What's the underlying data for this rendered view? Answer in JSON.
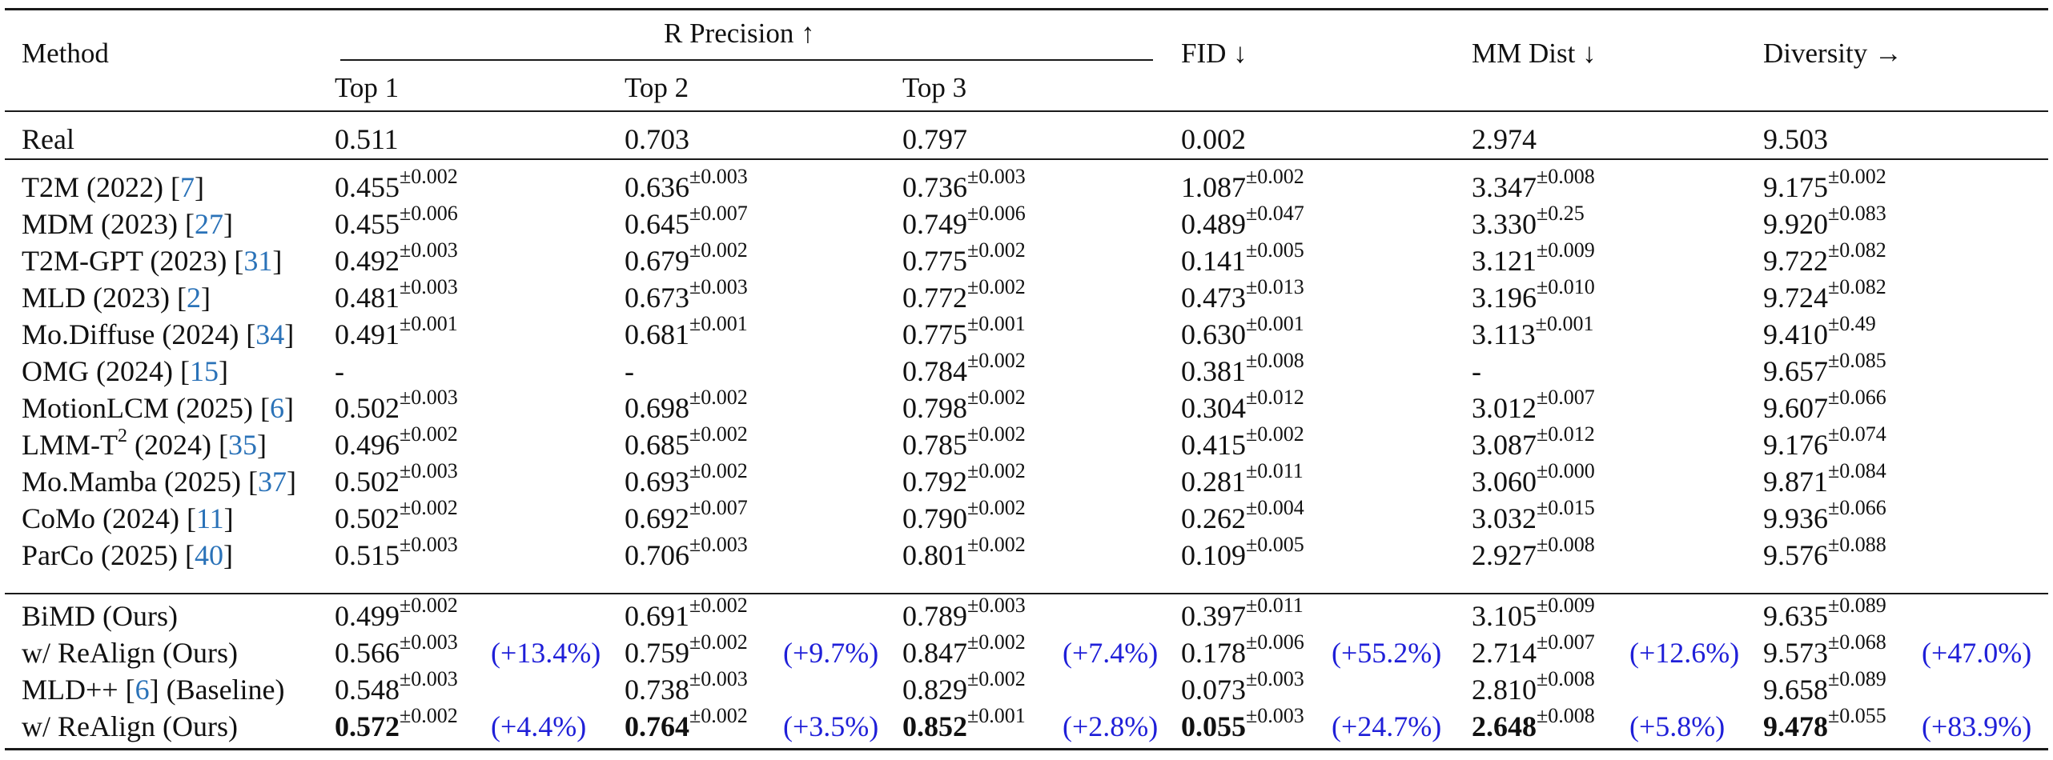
{
  "table": {
    "header": {
      "method": "Method",
      "r_precision": "R Precision ↑",
      "top1": "Top 1",
      "top2": "Top 2",
      "top3": "Top 3",
      "fid": "FID ↓",
      "mm_dist": "MM Dist ↓",
      "diversity": "Diversity →"
    },
    "real": {
      "method": "Real",
      "top1": "0.511",
      "top2": "0.703",
      "top3": "0.797",
      "fid": "0.002",
      "mm_dist": "2.974",
      "diversity": "9.503"
    },
    "baselines": [
      {
        "name": "T2M (2022) [",
        "ref": "7",
        "close": "]",
        "top1": [
          "0.455",
          "±0.002"
        ],
        "top2": [
          "0.636",
          "±0.003"
        ],
        "top3": [
          "0.736",
          "±0.003"
        ],
        "fid": [
          "1.087",
          "±0.002"
        ],
        "mm": [
          "3.347",
          "±0.008"
        ],
        "div": [
          "9.175",
          "±0.002"
        ]
      },
      {
        "name": "MDM (2023) [",
        "ref": "27",
        "close": "]",
        "top1": [
          "0.455",
          "±0.006"
        ],
        "top2": [
          "0.645",
          "±0.007"
        ],
        "top3": [
          "0.749",
          "±0.006"
        ],
        "fid": [
          "0.489",
          "±0.047"
        ],
        "mm": [
          "3.330",
          "±0.25"
        ],
        "div": [
          "9.920",
          "±0.083"
        ]
      },
      {
        "name": "T2M-GPT (2023) [",
        "ref": "31",
        "close": "]",
        "top1": [
          "0.492",
          "±0.003"
        ],
        "top2": [
          "0.679",
          "±0.002"
        ],
        "top3": [
          "0.775",
          "±0.002"
        ],
        "fid": [
          "0.141",
          "±0.005"
        ],
        "mm": [
          "3.121",
          "±0.009"
        ],
        "div": [
          "9.722",
          "±0.082"
        ]
      },
      {
        "name": "MLD (2023) [",
        "ref": "2",
        "close": "]",
        "top1": [
          "0.481",
          "±0.003"
        ],
        "top2": [
          "0.673",
          "±0.003"
        ],
        "top3": [
          "0.772",
          "±0.002"
        ],
        "fid": [
          "0.473",
          "±0.013"
        ],
        "mm": [
          "3.196",
          "±0.010"
        ],
        "div": [
          "9.724",
          "±0.082"
        ]
      },
      {
        "name": "Mo.Diffuse (2024) [",
        "ref": "34",
        "close": "]",
        "top1": [
          "0.491",
          "±0.001"
        ],
        "top2": [
          "0.681",
          "±0.001"
        ],
        "top3": [
          "0.775",
          "±0.001"
        ],
        "fid": [
          "0.630",
          "±0.001"
        ],
        "mm": [
          "3.113",
          "±0.001"
        ],
        "div": [
          "9.410",
          "±0.49"
        ]
      },
      {
        "name": "OMG (2024) [",
        "ref": "15",
        "close": "]",
        "top1": [
          "-",
          ""
        ],
        "top2": [
          "-",
          ""
        ],
        "top3": [
          "0.784",
          "±0.002"
        ],
        "fid": [
          "0.381",
          "±0.008"
        ],
        "mm": [
          "-",
          ""
        ],
        "div": [
          "9.657",
          "±0.085"
        ]
      },
      {
        "name": "MotionLCM (2025) [",
        "ref": "6",
        "close": "]",
        "top1": [
          "0.502",
          "±0.003"
        ],
        "top2": [
          "0.698",
          "±0.002"
        ],
        "top3": [
          "0.798",
          "±0.002"
        ],
        "fid": [
          "0.304",
          "±0.012"
        ],
        "mm": [
          "3.012",
          "±0.007"
        ],
        "div": [
          "9.607",
          "±0.066"
        ]
      },
      {
        "name": "LMM-T",
        "sup": "2",
        "name2": " (2024) [",
        "ref": "35",
        "close": "]",
        "top1": [
          "0.496",
          "±0.002"
        ],
        "top2": [
          "0.685",
          "±0.002"
        ],
        "top3": [
          "0.785",
          "±0.002"
        ],
        "fid": [
          "0.415",
          "±0.002"
        ],
        "mm": [
          "3.087",
          "±0.012"
        ],
        "div": [
          "9.176",
          "±0.074"
        ]
      },
      {
        "name": "Mo.Mamba (2025) [",
        "ref": "37",
        "close": "]",
        "top1": [
          "0.502",
          "±0.003"
        ],
        "top2": [
          "0.693",
          "±0.002"
        ],
        "top3": [
          "0.792",
          "±0.002"
        ],
        "fid": [
          "0.281",
          "±0.011"
        ],
        "mm": [
          "3.060",
          "±0.000"
        ],
        "div": [
          "9.871",
          "±0.084"
        ]
      },
      {
        "name": "CoMo (2024) [",
        "ref": "11",
        "close": "]",
        "top1": [
          "0.502",
          "±0.002"
        ],
        "top2": [
          "0.692",
          "±0.007"
        ],
        "top3": [
          "0.790",
          "±0.002"
        ],
        "fid": [
          "0.262",
          "±0.004"
        ],
        "mm": [
          "3.032",
          "±0.015"
        ],
        "div": [
          "9.936",
          "±0.066"
        ]
      },
      {
        "name": "ParCo (2025) [",
        "ref": "40",
        "close": "]",
        "top1": [
          "0.515",
          "±0.003"
        ],
        "top2": [
          "0.706",
          "±0.003"
        ],
        "top3": [
          "0.801",
          "±0.002"
        ],
        "fid": [
          "0.109",
          "±0.005"
        ],
        "mm": [
          "2.927",
          "±0.008"
        ],
        "div": [
          "9.576",
          "±0.088"
        ]
      }
    ],
    "ours": [
      {
        "name": "BiMD (Ours)",
        "top1": [
          "0.499",
          "±0.002",
          ""
        ],
        "top2": [
          "0.691",
          "±0.002",
          ""
        ],
        "top3": [
          "0.789",
          "±0.003",
          ""
        ],
        "fid": [
          "0.397",
          "±0.011",
          ""
        ],
        "mm": [
          "3.105",
          "±0.009",
          ""
        ],
        "div": [
          "9.635",
          "±0.089",
          ""
        ]
      },
      {
        "name": "w/ ReAlign (Ours)",
        "top1": [
          "0.566",
          "±0.003",
          "(+13.4%)"
        ],
        "top2": [
          "0.759",
          "±0.002",
          "(+9.7%)"
        ],
        "top3": [
          "0.847",
          "±0.002",
          "(+7.4%)"
        ],
        "fid": [
          "0.178",
          "±0.006",
          "(+55.2%)"
        ],
        "mm": [
          "2.714",
          "±0.007",
          "(+12.6%)"
        ],
        "div": [
          "9.573",
          "±0.068",
          "(+47.0%)"
        ]
      },
      {
        "name": "MLD++ [",
        "ref": "6",
        "close": "] (Baseline)",
        "top1": [
          "0.548",
          "±0.003",
          ""
        ],
        "top2": [
          "0.738",
          "±0.003",
          ""
        ],
        "top3": [
          "0.829",
          "±0.002",
          ""
        ],
        "fid": [
          "0.073",
          "±0.003",
          ""
        ],
        "mm": [
          "2.810",
          "±0.008",
          ""
        ],
        "div": [
          "9.658",
          "±0.089",
          ""
        ]
      },
      {
        "name": "w/ ReAlign (Ours)",
        "top1": [
          "0.572",
          "±0.002",
          "(+4.4%)"
        ],
        "top2": [
          "0.764",
          "±0.002",
          "(+3.5%)"
        ],
        "top3": [
          "0.852",
          "±0.001",
          "(+2.8%)"
        ],
        "fid": [
          "0.055",
          "±0.003",
          "(+24.7%)"
        ],
        "mm": [
          "2.648",
          "±0.008",
          "(+5.8%)"
        ],
        "div": [
          "9.478",
          "±0.055",
          "(+83.9%)"
        ]
      }
    ]
  },
  "colors": {
    "improvement": "#1f1fd8",
    "citation": "#2a72b8"
  }
}
